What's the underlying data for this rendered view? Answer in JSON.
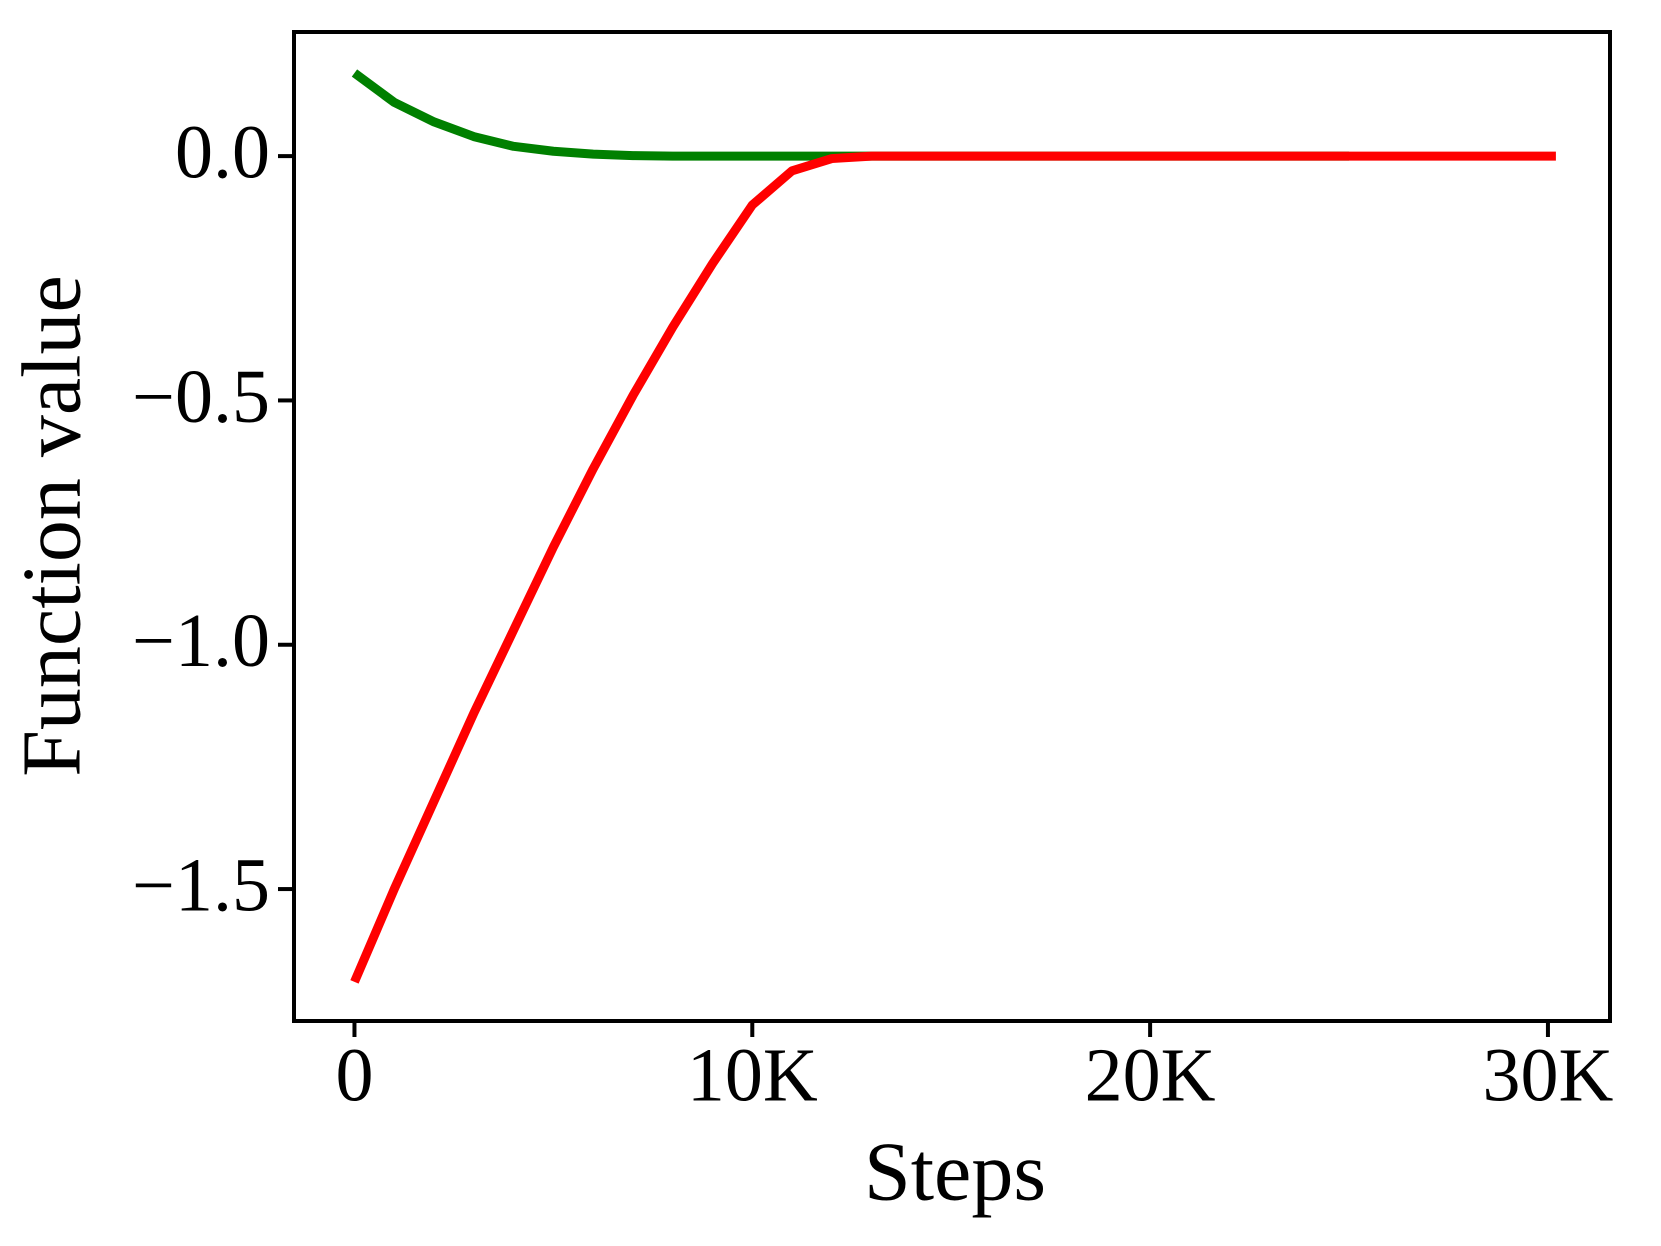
{
  "chart_data": {
    "type": "line",
    "xlabel": "Steps",
    "ylabel": "Function value",
    "x": [
      0,
      1000,
      2000,
      3000,
      4000,
      5000,
      6000,
      7000,
      8000,
      9000,
      10000,
      11000,
      12000,
      13000,
      15000,
      20000,
      25000,
      30200
    ],
    "series": [
      {
        "color": "#008000",
        "values": [
          0.17,
          0.11,
          0.07,
          0.04,
          0.02,
          0.01,
          0.004,
          0.001,
          0,
          0,
          0,
          0,
          0,
          0,
          0,
          0,
          0,
          null
        ]
      },
      {
        "color": "#ff0000",
        "values": [
          -1.69,
          -1.5,
          -1.32,
          -1.14,
          -0.97,
          -0.8,
          -0.64,
          -0.49,
          -0.35,
          -0.22,
          -0.1,
          -0.03,
          -0.005,
          0,
          0,
          0,
          0,
          0
        ]
      }
    ],
    "xlim": [
      -1520,
      31560
    ],
    "ylim": [
      -1.77,
      0.254
    ],
    "xticks": [
      0,
      {
        "value": 10000,
        "label": "10K"
      },
      {
        "value": 20000,
        "label": "20K"
      },
      {
        "value": 30000,
        "label": "30K"
      }
    ],
    "yticks": [
      {
        "value": 0,
        "label": "0.0"
      },
      {
        "value": -0.5,
        "label": "−0.5"
      },
      {
        "value": -1,
        "label": "−1.0"
      },
      {
        "value": -1.5,
        "label": "−1.5"
      }
    ],
    "grid": false
  }
}
